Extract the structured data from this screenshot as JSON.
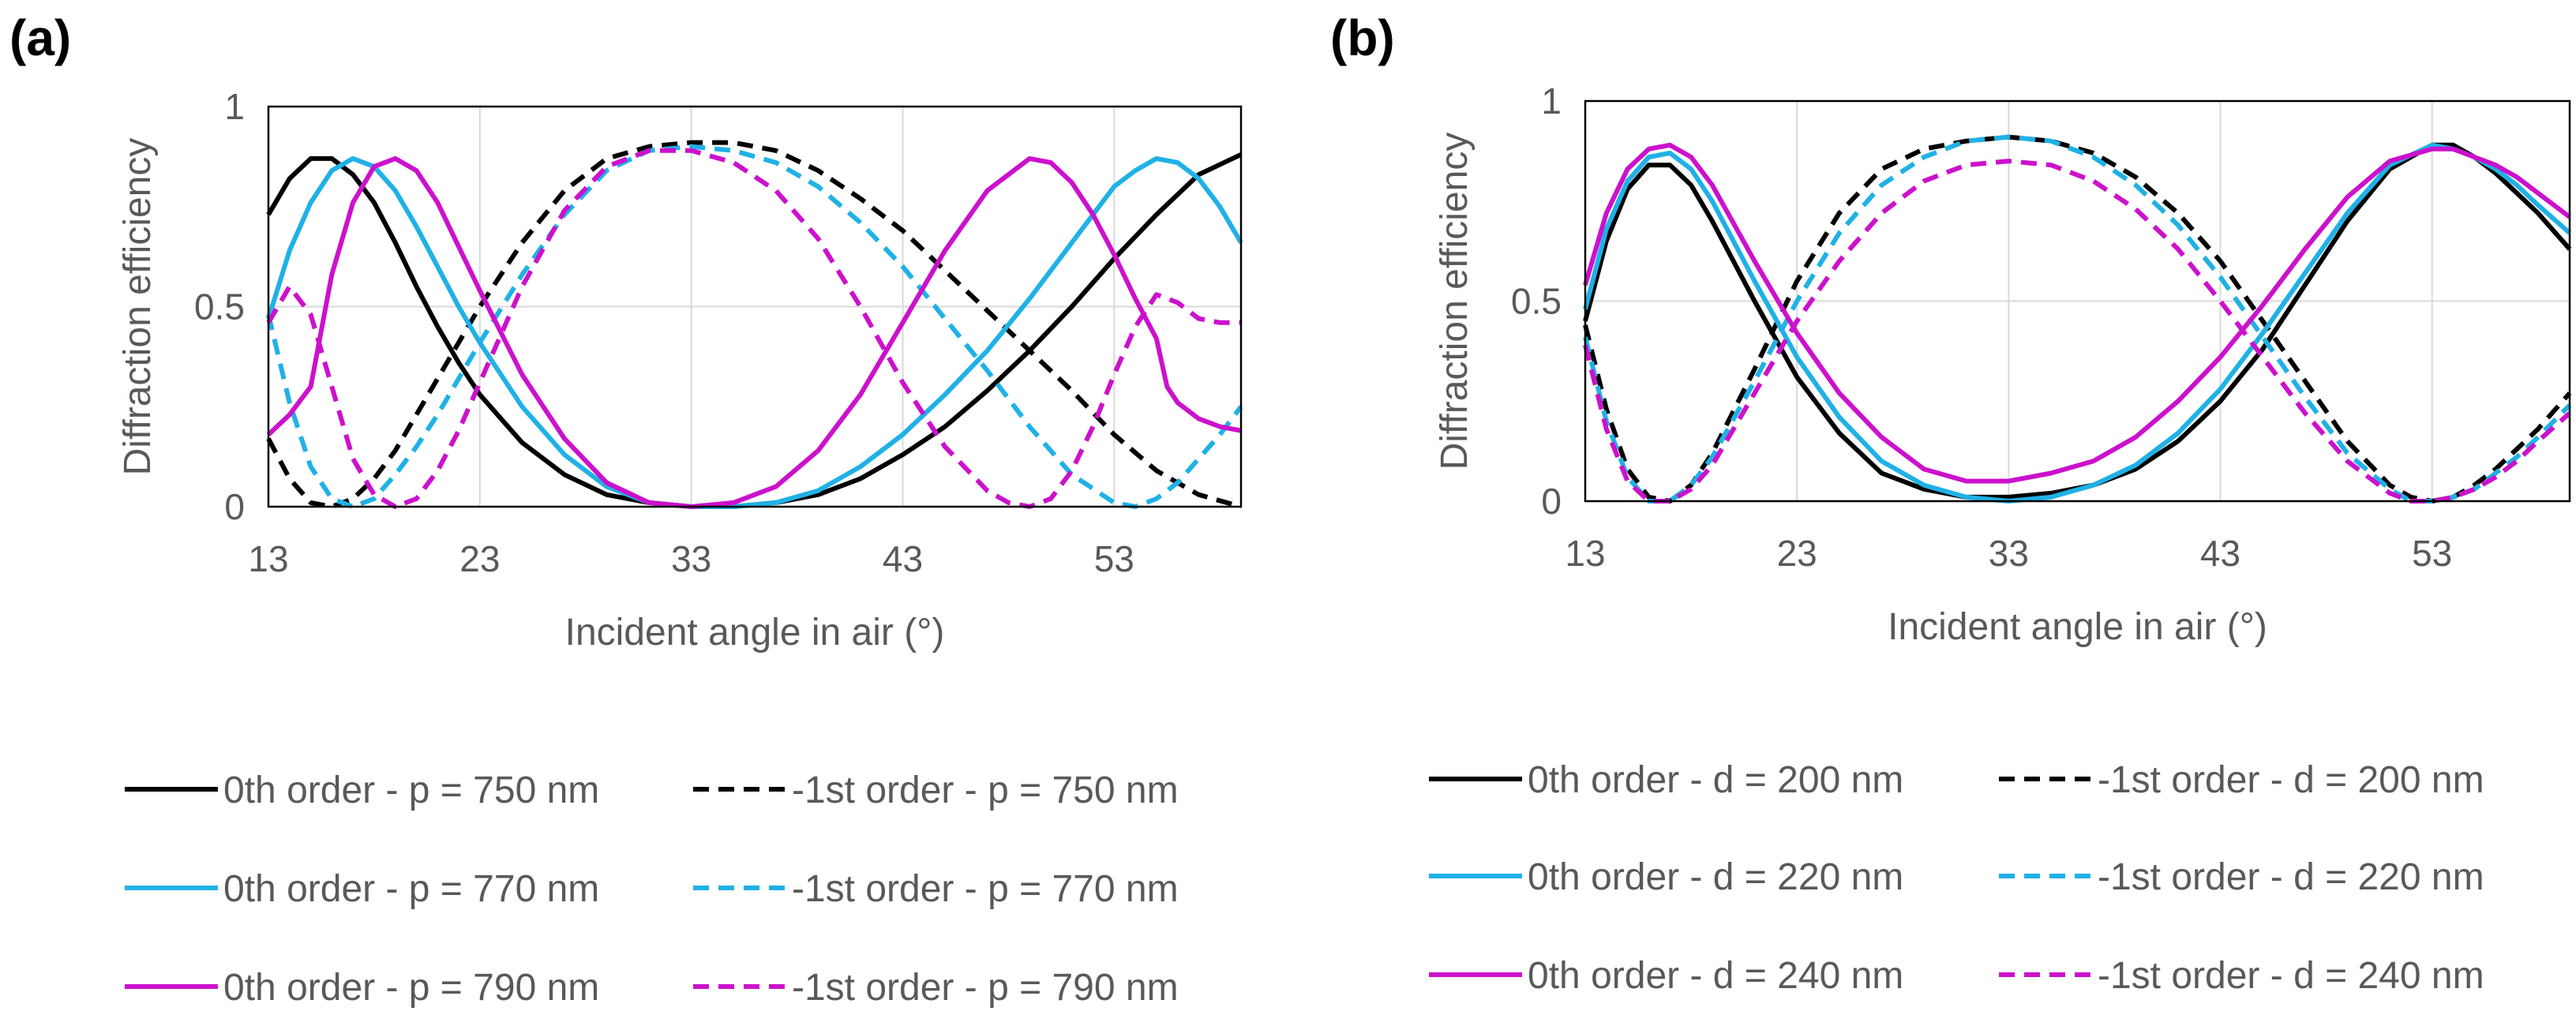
{
  "figure": {
    "panels": [
      "(a)",
      "(b)"
    ]
  },
  "styles": {
    "colors": {
      "black": "#000000",
      "blue": "#1fb1e6",
      "magenta": "#cc11cc"
    }
  },
  "chart_data": [
    {
      "type": "line",
      "panel_label": "(a)",
      "xlabel": "Incident angle in air (°)",
      "ylabel": "Diffraction efficiency",
      "xlim": [
        13,
        59
      ],
      "ylim": [
        0,
        1
      ],
      "xticks": [
        13,
        23,
        33,
        43,
        53
      ],
      "yticks": [
        0,
        0.5,
        1
      ],
      "ytick_labels": [
        "0",
        "0.5",
        "1"
      ],
      "grid": true,
      "legend_position": "bottom",
      "series": [
        {
          "name": "0th order - p = 750 nm",
          "color": "black",
          "dash": "solid",
          "x": [
            13,
            14,
            15,
            16,
            17,
            18,
            19,
            20,
            21,
            22,
            23,
            25,
            27,
            29,
            31,
            33,
            35,
            37,
            39,
            41,
            43,
            45,
            47,
            49,
            51,
            53,
            55,
            57,
            59
          ],
          "y": [
            0.73,
            0.82,
            0.87,
            0.87,
            0.83,
            0.76,
            0.66,
            0.55,
            0.45,
            0.36,
            0.28,
            0.16,
            0.08,
            0.03,
            0.01,
            0.0,
            0.0,
            0.01,
            0.03,
            0.07,
            0.13,
            0.2,
            0.29,
            0.39,
            0.5,
            0.62,
            0.73,
            0.83,
            0.88
          ]
        },
        {
          "name": "-1st order - p = 750 nm",
          "color": "black",
          "dash": "dash",
          "x": [
            13,
            14,
            15,
            16,
            17,
            18,
            19,
            20,
            21,
            22,
            23,
            25,
            27,
            29,
            31,
            33,
            35,
            37,
            39,
            41,
            43,
            45,
            47,
            49,
            51,
            53,
            55,
            57,
            59
          ],
          "y": [
            0.17,
            0.07,
            0.01,
            0.0,
            0.02,
            0.07,
            0.14,
            0.23,
            0.32,
            0.41,
            0.5,
            0.66,
            0.79,
            0.87,
            0.9,
            0.91,
            0.91,
            0.89,
            0.84,
            0.77,
            0.69,
            0.59,
            0.49,
            0.39,
            0.29,
            0.18,
            0.09,
            0.03,
            0.0
          ]
        },
        {
          "name": "0th order - p = 770 nm",
          "color": "blue",
          "dash": "solid",
          "x": [
            13,
            14,
            15,
            16,
            17,
            18,
            19,
            20,
            21,
            22,
            23,
            25,
            27,
            29,
            31,
            33,
            35,
            37,
            39,
            41,
            43,
            45,
            47,
            49,
            51,
            53,
            54,
            55,
            56,
            57,
            58,
            59
          ],
          "y": [
            0.47,
            0.64,
            0.76,
            0.84,
            0.87,
            0.85,
            0.79,
            0.7,
            0.6,
            0.5,
            0.41,
            0.25,
            0.13,
            0.05,
            0.01,
            0.0,
            0.0,
            0.01,
            0.04,
            0.1,
            0.18,
            0.28,
            0.39,
            0.52,
            0.66,
            0.8,
            0.84,
            0.87,
            0.86,
            0.82,
            0.75,
            0.66
          ]
        },
        {
          "name": "-1st order - p = 770 nm",
          "color": "blue",
          "dash": "dash",
          "x": [
            13,
            14,
            15,
            16,
            17,
            18,
            19,
            20,
            21,
            22,
            23,
            25,
            27,
            29,
            31,
            33,
            35,
            37,
            39,
            41,
            43,
            45,
            47,
            49,
            51,
            53,
            54,
            55,
            56,
            57,
            58,
            59
          ],
          "y": [
            0.48,
            0.26,
            0.1,
            0.02,
            0.0,
            0.02,
            0.08,
            0.15,
            0.23,
            0.32,
            0.41,
            0.58,
            0.73,
            0.84,
            0.89,
            0.9,
            0.89,
            0.86,
            0.8,
            0.71,
            0.6,
            0.47,
            0.34,
            0.2,
            0.08,
            0.01,
            0.0,
            0.02,
            0.06,
            0.12,
            0.18,
            0.25
          ]
        },
        {
          "name": "0th order - p = 790 nm",
          "color": "magenta",
          "dash": "solid",
          "x": [
            13,
            14,
            15,
            16,
            17,
            18,
            19,
            20,
            21,
            22,
            23,
            25,
            27,
            29,
            31,
            33,
            35,
            37,
            39,
            41,
            43,
            45,
            47,
            49,
            50,
            51,
            52,
            53,
            54,
            55,
            55.5,
            56,
            57,
            58,
            59
          ],
          "y": [
            0.18,
            0.23,
            0.3,
            0.58,
            0.76,
            0.85,
            0.87,
            0.84,
            0.76,
            0.65,
            0.54,
            0.33,
            0.17,
            0.06,
            0.01,
            0.0,
            0.01,
            0.05,
            0.14,
            0.28,
            0.46,
            0.64,
            0.79,
            0.87,
            0.86,
            0.81,
            0.73,
            0.63,
            0.52,
            0.42,
            0.3,
            0.26,
            0.22,
            0.2,
            0.19
          ]
        },
        {
          "name": "-1st order - p = 790 nm",
          "color": "magenta",
          "dash": "dash",
          "x": [
            13,
            14,
            15,
            16,
            17,
            18,
            19,
            20,
            21,
            22,
            23,
            25,
            27,
            29,
            31,
            33,
            35,
            37,
            39,
            41,
            43,
            45,
            47,
            48,
            49,
            50,
            51,
            52,
            53,
            54,
            55,
            56,
            57,
            58,
            59
          ],
          "y": [
            0.46,
            0.55,
            0.48,
            0.3,
            0.12,
            0.03,
            0.0,
            0.02,
            0.09,
            0.19,
            0.31,
            0.55,
            0.74,
            0.85,
            0.89,
            0.89,
            0.86,
            0.79,
            0.67,
            0.5,
            0.31,
            0.15,
            0.04,
            0.01,
            0.0,
            0.02,
            0.09,
            0.2,
            0.33,
            0.45,
            0.53,
            0.51,
            0.47,
            0.46,
            0.46
          ]
        }
      ]
    },
    {
      "type": "line",
      "panel_label": "(b)",
      "xlabel": "Incident angle in air (°)",
      "ylabel": "Diffraction efficiency",
      "xlim": [
        13,
        59.5
      ],
      "ylim": [
        0,
        1
      ],
      "xticks": [
        13,
        23,
        33,
        43,
        53
      ],
      "yticks": [
        0,
        0.5,
        1
      ],
      "ytick_labels": [
        "0",
        "0.5",
        "1"
      ],
      "grid": true,
      "legend_position": "bottom",
      "series": [
        {
          "name": "0th order - d = 200 nm",
          "color": "black",
          "dash": "solid",
          "x": [
            13,
            14,
            15,
            16,
            17,
            18,
            19,
            21,
            23,
            25,
            27,
            29,
            31,
            33,
            35,
            37,
            39,
            41,
            43,
            45,
            47,
            49,
            51,
            53,
            54,
            55,
            56,
            57,
            58,
            59.5
          ],
          "y": [
            0.45,
            0.65,
            0.78,
            0.84,
            0.84,
            0.79,
            0.7,
            0.5,
            0.31,
            0.17,
            0.07,
            0.03,
            0.01,
            0.01,
            0.02,
            0.04,
            0.08,
            0.15,
            0.25,
            0.38,
            0.54,
            0.7,
            0.83,
            0.89,
            0.89,
            0.86,
            0.82,
            0.77,
            0.72,
            0.63
          ]
        },
        {
          "name": "-1st order - d = 200 nm",
          "color": "black",
          "dash": "dash",
          "x": [
            13,
            14,
            15,
            16,
            17,
            18,
            19,
            21,
            23,
            25,
            27,
            29,
            31,
            33,
            35,
            37,
            39,
            41,
            43,
            45,
            47,
            49,
            51,
            52,
            53,
            54,
            55,
            56,
            57,
            58,
            59.5
          ],
          "y": [
            0.44,
            0.23,
            0.08,
            0.01,
            0.0,
            0.04,
            0.12,
            0.33,
            0.55,
            0.72,
            0.83,
            0.88,
            0.9,
            0.91,
            0.9,
            0.87,
            0.81,
            0.72,
            0.6,
            0.45,
            0.3,
            0.15,
            0.04,
            0.01,
            0.0,
            0.01,
            0.04,
            0.08,
            0.13,
            0.18,
            0.27
          ]
        },
        {
          "name": "0th order - d = 220 nm",
          "color": "blue",
          "dash": "solid",
          "x": [
            13,
            14,
            15,
            16,
            17,
            18,
            19,
            21,
            23,
            25,
            27,
            29,
            31,
            33,
            35,
            37,
            39,
            41,
            43,
            45,
            47,
            49,
            51,
            53,
            54,
            55,
            56,
            57,
            58,
            59.5
          ],
          "y": [
            0.48,
            0.68,
            0.8,
            0.86,
            0.87,
            0.83,
            0.75,
            0.55,
            0.36,
            0.21,
            0.1,
            0.04,
            0.01,
            0.0,
            0.01,
            0.04,
            0.09,
            0.17,
            0.28,
            0.42,
            0.57,
            0.72,
            0.84,
            0.89,
            0.88,
            0.86,
            0.83,
            0.79,
            0.74,
            0.67
          ]
        },
        {
          "name": "-1st order - d = 220 nm",
          "color": "blue",
          "dash": "dash",
          "x": [
            13,
            14,
            15,
            16,
            17,
            18,
            19,
            21,
            23,
            25,
            27,
            29,
            31,
            33,
            35,
            37,
            39,
            41,
            43,
            45,
            47,
            49,
            51,
            52,
            53,
            54,
            55,
            56,
            57,
            58,
            59.5
          ],
          "y": [
            0.41,
            0.2,
            0.06,
            0.0,
            0.0,
            0.04,
            0.11,
            0.3,
            0.5,
            0.67,
            0.79,
            0.86,
            0.9,
            0.91,
            0.9,
            0.86,
            0.79,
            0.69,
            0.56,
            0.41,
            0.26,
            0.12,
            0.03,
            0.0,
            0.0,
            0.01,
            0.03,
            0.07,
            0.11,
            0.16,
            0.24
          ]
        },
        {
          "name": "0th order - d = 240 nm",
          "color": "magenta",
          "dash": "solid",
          "x": [
            13,
            14,
            15,
            16,
            17,
            18,
            19,
            21,
            23,
            25,
            27,
            29,
            31,
            33,
            35,
            37,
            39,
            41,
            43,
            45,
            47,
            49,
            51,
            53,
            54,
            55,
            56,
            57,
            58,
            59.5
          ],
          "y": [
            0.54,
            0.72,
            0.83,
            0.88,
            0.89,
            0.86,
            0.79,
            0.6,
            0.42,
            0.27,
            0.16,
            0.08,
            0.05,
            0.05,
            0.07,
            0.1,
            0.16,
            0.25,
            0.36,
            0.49,
            0.63,
            0.76,
            0.85,
            0.88,
            0.88,
            0.86,
            0.84,
            0.81,
            0.77,
            0.71
          ]
        },
        {
          "name": "-1st order - d = 240 nm",
          "color": "magenta",
          "dash": "dash",
          "x": [
            13,
            14,
            15,
            16,
            17,
            18,
            19,
            21,
            23,
            25,
            27,
            29,
            31,
            33,
            35,
            37,
            39,
            41,
            43,
            45,
            47,
            49,
            51,
            52,
            53,
            54,
            55,
            56,
            57,
            58,
            59.5
          ],
          "y": [
            0.39,
            0.18,
            0.05,
            0.0,
            0.0,
            0.03,
            0.09,
            0.27,
            0.45,
            0.6,
            0.72,
            0.8,
            0.84,
            0.85,
            0.84,
            0.8,
            0.73,
            0.63,
            0.5,
            0.36,
            0.22,
            0.1,
            0.02,
            0.0,
            0.0,
            0.01,
            0.03,
            0.06,
            0.1,
            0.15,
            0.22
          ]
        }
      ]
    }
  ]
}
